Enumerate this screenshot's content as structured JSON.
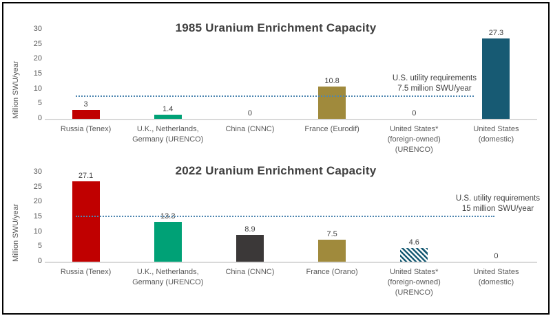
{
  "colors": {
    "frame_border": "#000000",
    "background": "#FFFFFF",
    "title_text": "#404040",
    "axis_text": "#595959",
    "value_text": "#404040",
    "baseline": "#D9D9D9",
    "reference_line": "#4E86B0",
    "red": "#C00000",
    "green": "#00A176",
    "dark_yellow": "#A08A3C",
    "dark_gray": "#3B3838",
    "dark_teal": "#175A73"
  },
  "chart_data": [
    {
      "type": "bar",
      "title": "1985 Uranium Enrichment Capacity",
      "xlabel": "",
      "ylabel": "Million SWU/year",
      "ylim": [
        0,
        30
      ],
      "yticks": [
        0,
        5,
        10,
        15,
        20,
        25,
        30
      ],
      "grid": false,
      "legend": "none",
      "categories": [
        "Russia (Tenex)",
        "U.K., Netherlands, Germany (URENCO)",
        "China (CNNC)",
        "France (Eurodif)",
        "United States* (foreign-owned) (URENCO)",
        "United States (domestic)"
      ],
      "values": [
        3,
        1.4,
        0,
        10.8,
        0,
        27.3
      ],
      "value_labels": [
        "3",
        "1.4",
        "0",
        "10.8",
        "0",
        "27.3"
      ],
      "bar_colors": [
        "#C00000",
        "#00A176",
        "#3B3838",
        "#A08A3C",
        "#175A73",
        "#175A73"
      ],
      "bar_patterns": [
        "solid",
        "solid",
        "solid",
        "solid",
        "solid",
        "solid"
      ],
      "reference_line": {
        "value": 7.5,
        "color": "#4E86B0",
        "label": [
          "U.S. utility requirements",
          "7.5 million SWU/year"
        ]
      }
    },
    {
      "type": "bar",
      "title": "2022 Uranium Enrichment Capacity",
      "xlabel": "",
      "ylabel": "Million SWU/year",
      "ylim": [
        0,
        30
      ],
      "yticks": [
        0,
        5,
        10,
        15,
        20,
        25,
        30
      ],
      "grid": false,
      "legend": "none",
      "categories": [
        "Russia (Tenex)",
        "U.K., Netherlands, Germany (URENCO)",
        "China (CNNC)",
        "France (Orano)",
        "United States* (foreign-owned) (URENCO)",
        "United States (domestic)"
      ],
      "values": [
        27.1,
        13.3,
        8.9,
        7.5,
        4.6,
        0
      ],
      "value_labels": [
        "27.1",
        "13.3",
        "8.9",
        "7.5",
        "4.6",
        "0"
      ],
      "bar_colors": [
        "#C00000",
        "#00A176",
        "#3B3838",
        "#A08A3C",
        "#175A73",
        "#175A73"
      ],
      "bar_patterns": [
        "solid",
        "solid",
        "solid",
        "solid",
        "hatch",
        "solid"
      ],
      "reference_line": {
        "value": 15,
        "color": "#4E86B0",
        "label": [
          "U.S. utility requirements",
          "15 million SWU/year"
        ]
      }
    }
  ]
}
